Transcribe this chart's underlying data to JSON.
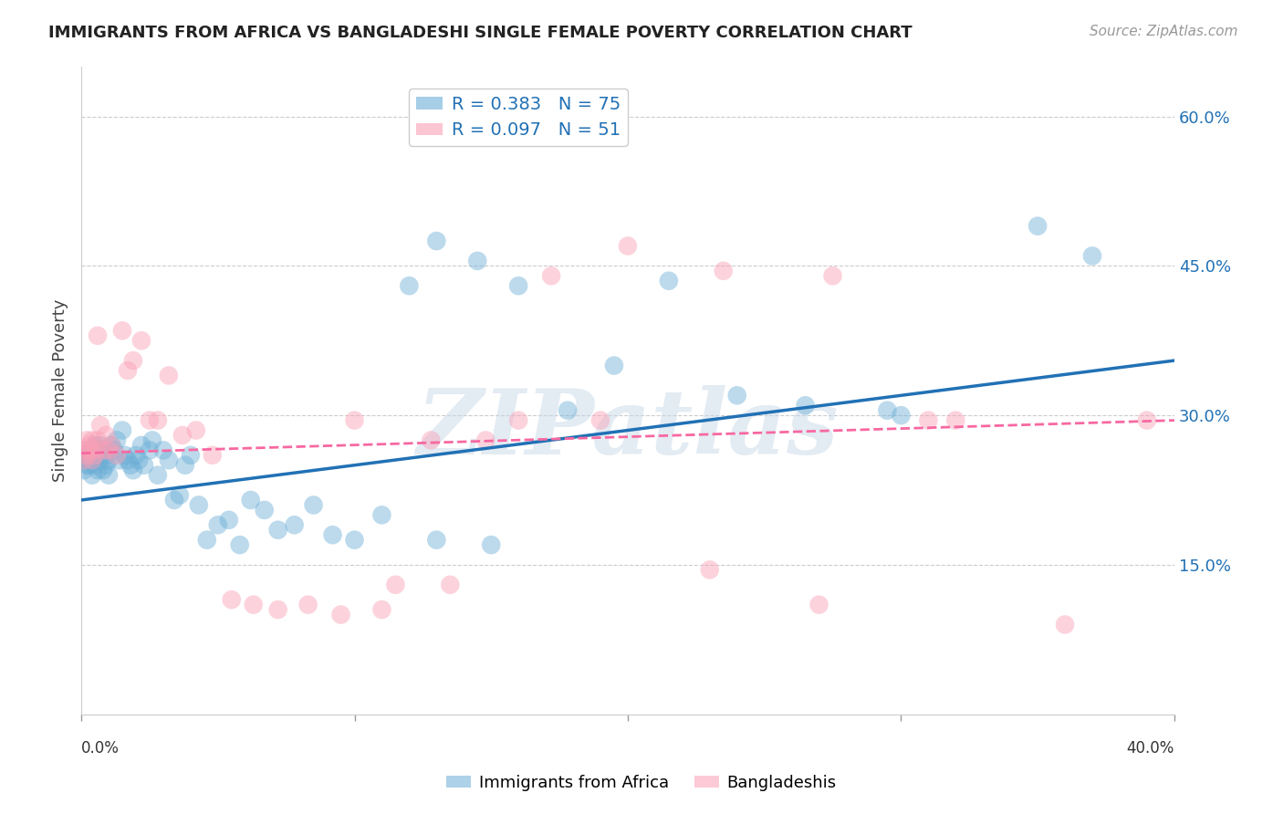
{
  "title": "IMMIGRANTS FROM AFRICA VS BANGLADESHI SINGLE FEMALE POVERTY CORRELATION CHART",
  "source": "Source: ZipAtlas.com",
  "ylabel": "Single Female Poverty",
  "ytick_labels": [
    "60.0%",
    "45.0%",
    "30.0%",
    "15.0%"
  ],
  "ytick_values": [
    0.6,
    0.45,
    0.3,
    0.15
  ],
  "xlim": [
    0.0,
    0.4
  ],
  "ylim": [
    0.0,
    0.65
  ],
  "legend1_R": "0.383",
  "legend1_N": "75",
  "legend2_R": "0.097",
  "legend2_N": "51",
  "color_blue": "#6baed6",
  "color_pink": "#fa9fb5",
  "line_blue": "#2171b5",
  "line_pink": "#f768a1",
  "watermark": "ZIPatlas",
  "africa_x": [
    0.001,
    0.001,
    0.002,
    0.002,
    0.002,
    0.003,
    0.003,
    0.003,
    0.004,
    0.004,
    0.004,
    0.005,
    0.005,
    0.005,
    0.006,
    0.006,
    0.006,
    0.007,
    0.007,
    0.008,
    0.008,
    0.009,
    0.009,
    0.01,
    0.01,
    0.011,
    0.012,
    0.013,
    0.014,
    0.015,
    0.016,
    0.017,
    0.018,
    0.019,
    0.02,
    0.021,
    0.022,
    0.023,
    0.025,
    0.026,
    0.028,
    0.03,
    0.032,
    0.034,
    0.036,
    0.038,
    0.04,
    0.043,
    0.046,
    0.05,
    0.054,
    0.058,
    0.062,
    0.067,
    0.072,
    0.078,
    0.085,
    0.092,
    0.1,
    0.11,
    0.12,
    0.13,
    0.145,
    0.16,
    0.178,
    0.195,
    0.215,
    0.24,
    0.265,
    0.295,
    0.13,
    0.15,
    0.3,
    0.35,
    0.37
  ],
  "africa_y": [
    0.255,
    0.245,
    0.265,
    0.26,
    0.25,
    0.255,
    0.26,
    0.25,
    0.265,
    0.255,
    0.24,
    0.27,
    0.26,
    0.25,
    0.265,
    0.255,
    0.245,
    0.27,
    0.255,
    0.265,
    0.245,
    0.26,
    0.25,
    0.255,
    0.24,
    0.27,
    0.265,
    0.275,
    0.255,
    0.285,
    0.26,
    0.255,
    0.25,
    0.245,
    0.26,
    0.255,
    0.27,
    0.25,
    0.265,
    0.275,
    0.24,
    0.265,
    0.255,
    0.215,
    0.22,
    0.25,
    0.26,
    0.21,
    0.175,
    0.19,
    0.195,
    0.17,
    0.215,
    0.205,
    0.185,
    0.19,
    0.21,
    0.18,
    0.175,
    0.2,
    0.43,
    0.475,
    0.455,
    0.43,
    0.305,
    0.35,
    0.435,
    0.32,
    0.31,
    0.305,
    0.175,
    0.17,
    0.3,
    0.49,
    0.46
  ],
  "bangla_x": [
    0.001,
    0.001,
    0.002,
    0.002,
    0.003,
    0.003,
    0.004,
    0.004,
    0.005,
    0.005,
    0.006,
    0.006,
    0.007,
    0.008,
    0.009,
    0.01,
    0.011,
    0.013,
    0.015,
    0.017,
    0.019,
    0.022,
    0.025,
    0.028,
    0.032,
    0.037,
    0.042,
    0.048,
    0.055,
    0.063,
    0.072,
    0.083,
    0.095,
    0.11,
    0.128,
    0.148,
    0.172,
    0.2,
    0.235,
    0.275,
    0.32,
    0.36,
    0.39,
    0.1,
    0.115,
    0.135,
    0.16,
    0.19,
    0.23,
    0.27,
    0.31
  ],
  "bangla_y": [
    0.255,
    0.265,
    0.26,
    0.275,
    0.265,
    0.27,
    0.255,
    0.275,
    0.26,
    0.265,
    0.38,
    0.275,
    0.29,
    0.265,
    0.28,
    0.265,
    0.27,
    0.26,
    0.385,
    0.345,
    0.355,
    0.375,
    0.295,
    0.295,
    0.34,
    0.28,
    0.285,
    0.26,
    0.115,
    0.11,
    0.105,
    0.11,
    0.1,
    0.105,
    0.275,
    0.275,
    0.44,
    0.47,
    0.445,
    0.44,
    0.295,
    0.09,
    0.295,
    0.295,
    0.13,
    0.13,
    0.295,
    0.295,
    0.145,
    0.11,
    0.295
  ],
  "africa_line_x0": 0.0,
  "africa_line_x1": 0.4,
  "africa_line_y0": 0.215,
  "africa_line_y1": 0.355,
  "bangla_line_x0": 0.0,
  "bangla_line_x1": 0.4,
  "bangla_line_y0": 0.262,
  "bangla_line_y1": 0.295
}
